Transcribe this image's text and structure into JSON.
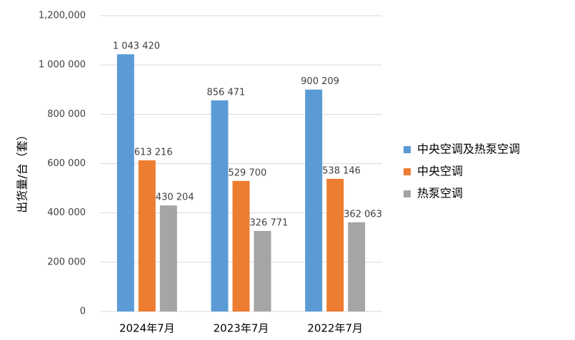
{
  "chart_data": {
    "type": "bar",
    "y_label": "出货量/台（套）",
    "categories": [
      "2024年7月",
      "2023年7月",
      "2022年7月"
    ],
    "series": [
      {
        "name": "中央空调及热泵空调",
        "color": "#5b9bd5",
        "values": [
          1043420,
          856471,
          900209
        ],
        "value_labels": [
          "1 043 420",
          "856 471",
          "900 209"
        ]
      },
      {
        "name": "中央空调",
        "color": "#ed7d31",
        "values": [
          613216,
          529700,
          538146
        ],
        "value_labels": [
          "613 216",
          "529 700",
          "538 146"
        ]
      },
      {
        "name": "热泵空调",
        "color": "#a5a5a5",
        "values": [
          430204,
          326771,
          362063
        ],
        "value_labels": [
          "430 204",
          "326 771",
          "362 063"
        ]
      }
    ],
    "ylim": [
      0,
      1200000
    ],
    "yticks": [
      0,
      {
        "value": 200000,
        "label": "200 000"
      },
      {
        "value": 400000,
        "label": "400 000"
      },
      {
        "value": 600000,
        "label": "600 000"
      },
      {
        "value": 800000,
        "label": "800 000"
      },
      {
        "value": 1000000,
        "label": "1 000 000"
      },
      {
        "value": 1200000,
        "label": "1,200,000"
      }
    ],
    "grid": true,
    "legend": "right"
  }
}
